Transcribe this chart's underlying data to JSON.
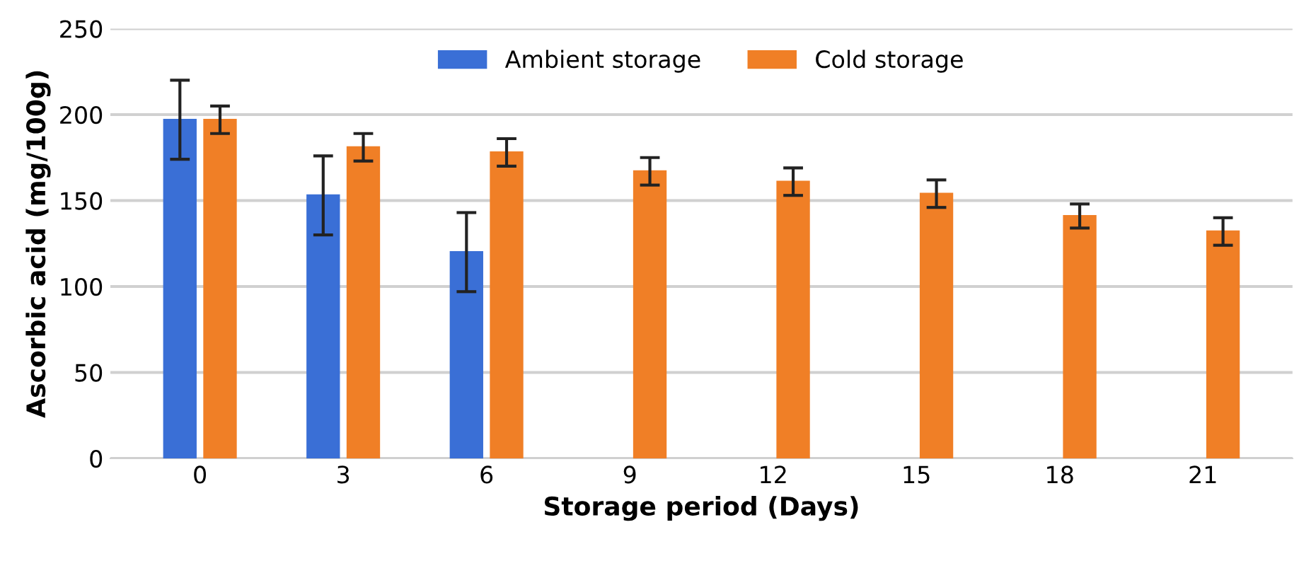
{
  "chart_data": {
    "type": "bar",
    "xlabel": "Storage period (Days)",
    "ylabel": "Ascorbic acid (mg/100g)",
    "categories": [
      "0",
      "3",
      "6",
      "9",
      "12",
      "15",
      "18",
      "21"
    ],
    "series": [
      {
        "name": "Ambient storage",
        "color": "#3a6fd6",
        "values": [
          197,
          153,
          120,
          null,
          null,
          null,
          null,
          null
        ],
        "errors": [
          23,
          23,
          23,
          null,
          null,
          null,
          null,
          null
        ]
      },
      {
        "name": "Cold storage",
        "color": "#f07f26",
        "values": [
          197,
          181,
          178,
          167,
          161,
          154,
          141,
          132
        ],
        "errors": [
          8,
          8,
          8,
          8,
          8,
          8,
          7,
          8
        ]
      }
    ],
    "ylim": [
      0,
      250
    ],
    "yticks": [
      0,
      50,
      100,
      150,
      200,
      250
    ],
    "grid": "y",
    "legend": "top"
  }
}
